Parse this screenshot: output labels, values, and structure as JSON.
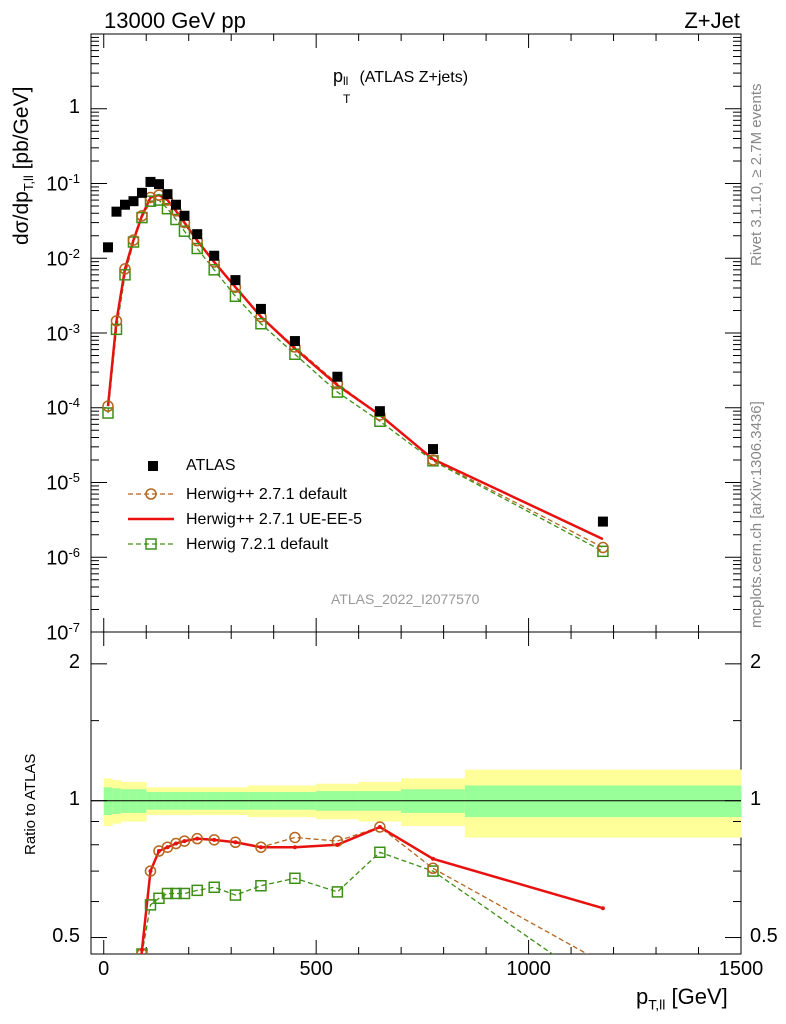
{
  "header": {
    "left": "13000 GeV pp",
    "right": "Z+Jet"
  },
  "side_text": {
    "rivet": "Rivet 3.1.10, ≥ 2.7M events",
    "mcplots": "mcplots.cern.ch [arXiv:1306.3436]"
  },
  "watermark": "ATLAS_2022_I2077570",
  "plot_title": {
    "main": "p",
    "sup": "ll",
    "sub": "T",
    "rest": " (ATLAS Z+jets)"
  },
  "axis": {
    "ylabel_main": {
      "pre": "dσ/dp",
      "sub": "T,ll",
      "post": " [pb/GeV]"
    },
    "ylabel_ratio": "Ratio to ATLAS",
    "xlabel": {
      "pre": "p",
      "sub": "T,ll",
      "post": " [GeV]"
    }
  },
  "legend": [
    {
      "label": "ATLAS",
      "style": "data"
    },
    {
      "label": "Herwig++ 2.7.1 default",
      "style": "brown"
    },
    {
      "label": "Herwig++ 2.7.1 UE-EE-5",
      "style": "red"
    },
    {
      "label": "Herwig 7.2.1 default",
      "style": "green"
    }
  ],
  "colors": {
    "brown": "#b5651d",
    "red": "#e8110f",
    "green": "#3c8f15",
    "band_inner": "#99ff99",
    "band_outer": "#ffff99",
    "data": "#000000"
  },
  "chart_data": [
    {
      "type": "scatter",
      "panel": "main",
      "xlim": [
        -30,
        1500
      ],
      "ylim": [
        1e-07,
        10
      ],
      "yscale": "log",
      "x_ticks": [
        0,
        500,
        1000,
        1500
      ],
      "y_tick_labels": [
        "10^-7",
        "10^-6",
        "10^-5",
        "10^-4",
        "10^-3",
        "10^-2",
        "10^-1",
        "1"
      ],
      "series": [
        {
          "name": "ATLAS",
          "x": [
            10,
            30,
            50,
            70,
            90,
            110,
            130,
            150,
            170,
            190,
            220,
            260,
            310,
            370,
            450,
            550,
            650,
            775,
            1175
          ],
          "y": [
            0.014,
            0.042,
            0.052,
            0.058,
            0.075,
            0.105,
            0.098,
            0.072,
            0.052,
            0.037,
            0.021,
            0.0108,
            0.0051,
            0.0021,
            0.00078,
            0.00026,
            9e-05,
            2.8e-05,
            3e-06
          ]
        },
        {
          "name": "Herwig++ 2.7.1 default",
          "x": [
            10,
            30,
            50,
            70,
            90,
            110,
            130,
            150,
            170,
            190,
            220,
            260,
            310,
            370,
            450,
            550,
            650,
            775,
            1175
          ],
          "y": [
            0.000105,
            0.00145,
            0.0072,
            0.0175,
            0.037,
            0.065,
            0.07,
            0.06,
            0.043,
            0.03,
            0.0172,
            0.0089,
            0.0041,
            0.00165,
            0.00065,
            0.00021,
            8e-05,
            2e-05,
            1.35e-06
          ]
        },
        {
          "name": "Herwig++ 2.7.1 UE-EE-5",
          "x": [
            10,
            30,
            50,
            70,
            90,
            110,
            130,
            150,
            170,
            190,
            220,
            260,
            310,
            370,
            450,
            550,
            650,
            775,
            1175
          ],
          "y": [
            0.000105,
            0.00145,
            0.0072,
            0.0175,
            0.037,
            0.065,
            0.07,
            0.06,
            0.043,
            0.03,
            0.0172,
            0.0089,
            0.0041,
            0.00165,
            0.00062,
            0.0002,
            8e-05,
            2.05e-05,
            1.75e-06
          ]
        },
        {
          "name": "Herwig 7.2.1 default",
          "x": [
            10,
            30,
            50,
            70,
            90,
            110,
            130,
            150,
            170,
            190,
            220,
            260,
            310,
            370,
            450,
            550,
            650,
            775,
            1175
          ],
          "y": [
            8.5e-05,
            0.00112,
            0.006,
            0.0165,
            0.035,
            0.058,
            0.06,
            0.046,
            0.033,
            0.023,
            0.0135,
            0.007,
            0.0031,
            0.00133,
            0.00052,
            0.000162,
            6.6e-05,
            1.95e-05,
            1.2e-06
          ]
        }
      ]
    },
    {
      "type": "line",
      "panel": "ratio",
      "xlim": [
        -30,
        1500
      ],
      "ylim": [
        0.46,
        2.35
      ],
      "yscale": "log",
      "x_ticks": [
        0,
        500,
        1000,
        1500
      ],
      "y_tick_labels": [
        "0.5",
        "1",
        "2"
      ],
      "bands": {
        "edges": [
          0,
          20,
          40,
          60,
          80,
          100,
          120,
          140,
          160,
          180,
          200,
          240,
          280,
          340,
          400,
          500,
          600,
          700,
          850,
          1500
        ],
        "inner": [
          0.07,
          0.065,
          0.06,
          0.06,
          0.06,
          0.045,
          0.045,
          0.045,
          0.045,
          0.045,
          0.045,
          0.045,
          0.045,
          0.045,
          0.045,
          0.05,
          0.05,
          0.06,
          0.08
        ],
        "outer": [
          0.12,
          0.11,
          0.1,
          0.1,
          0.1,
          0.07,
          0.07,
          0.07,
          0.07,
          0.07,
          0.07,
          0.07,
          0.07,
          0.08,
          0.08,
          0.09,
          0.1,
          0.12,
          0.17
        ]
      },
      "series": [
        {
          "name": "Herwig++ 2.7.1 default",
          "x": [
            90,
            110,
            130,
            150,
            170,
            190,
            220,
            260,
            310,
            370,
            450,
            550,
            650,
            775,
            1175
          ],
          "y": [
            0.46,
            0.7,
            0.775,
            0.79,
            0.805,
            0.815,
            0.825,
            0.82,
            0.81,
            0.79,
            0.83,
            0.815,
            0.875,
            0.71,
            0.44
          ]
        },
        {
          "name": "Herwig++ 2.7.1 UE-EE-5",
          "x": [
            80,
            90,
            110,
            130,
            150,
            170,
            190,
            220,
            260,
            310,
            370,
            450,
            550,
            650,
            775,
            1175
          ],
          "y": [
            0.37,
            0.47,
            0.7,
            0.775,
            0.79,
            0.805,
            0.815,
            0.825,
            0.82,
            0.81,
            0.79,
            0.79,
            0.8,
            0.875,
            0.745,
            0.58
          ]
        },
        {
          "name": "Herwig 7.2.1 default",
          "x": [
            90,
            110,
            130,
            150,
            170,
            190,
            220,
            260,
            310,
            370,
            450,
            550,
            650,
            775,
            1175
          ],
          "y": [
            0.46,
            0.59,
            0.61,
            0.625,
            0.625,
            0.625,
            0.635,
            0.645,
            0.62,
            0.65,
            0.675,
            0.63,
            0.77,
            0.7,
            0.385
          ]
        }
      ]
    }
  ]
}
